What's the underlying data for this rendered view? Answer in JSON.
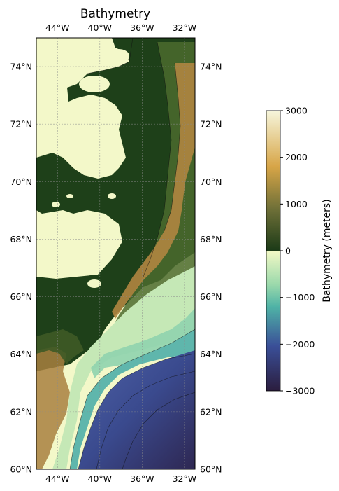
{
  "title": "Bathymetry",
  "map": {
    "extent": {
      "lon_min": -46,
      "lon_max": -31,
      "lat_min": 60,
      "lat_max": 75
    },
    "gridlines": true,
    "lon_ticks": [
      {
        "value": -44,
        "label": "44°W"
      },
      {
        "value": -40,
        "label": "40°W"
      },
      {
        "value": -36,
        "label": "36°W"
      },
      {
        "value": -32,
        "label": "32°W"
      }
    ],
    "lat_ticks": [
      {
        "value": 60,
        "label": "60°N"
      },
      {
        "value": 62,
        "label": "62°N"
      },
      {
        "value": 64,
        "label": "64°N"
      },
      {
        "value": 66,
        "label": "66°N"
      },
      {
        "value": 68,
        "label": "68°N"
      },
      {
        "value": 70,
        "label": "70°N"
      },
      {
        "value": 72,
        "label": "72°N"
      },
      {
        "value": 74,
        "label": "74°N"
      }
    ],
    "colors": {
      "ice": "#f3f8c9",
      "land_dark": "#1c3d18",
      "land_mid": "#5b6e33",
      "land_high": "#b48a45",
      "shelf": "#bfe6b4",
      "mid_water": "#6fc2b0",
      "deep_water": "#3d5a9c",
      "abyss": "#2f2a52"
    }
  },
  "colorbar": {
    "label": "Bathymetry (meters)",
    "min": -3000,
    "max": 3000,
    "ticks": [
      {
        "value": 3000,
        "label": "3000"
      },
      {
        "value": 2000,
        "label": "2000"
      },
      {
        "value": 1000,
        "label": "1000"
      },
      {
        "value": 0,
        "label": "0"
      },
      {
        "value": -1000,
        "label": "−1000"
      },
      {
        "value": -2000,
        "label": "−2000"
      },
      {
        "value": -3000,
        "label": "−3000"
      }
    ]
  }
}
